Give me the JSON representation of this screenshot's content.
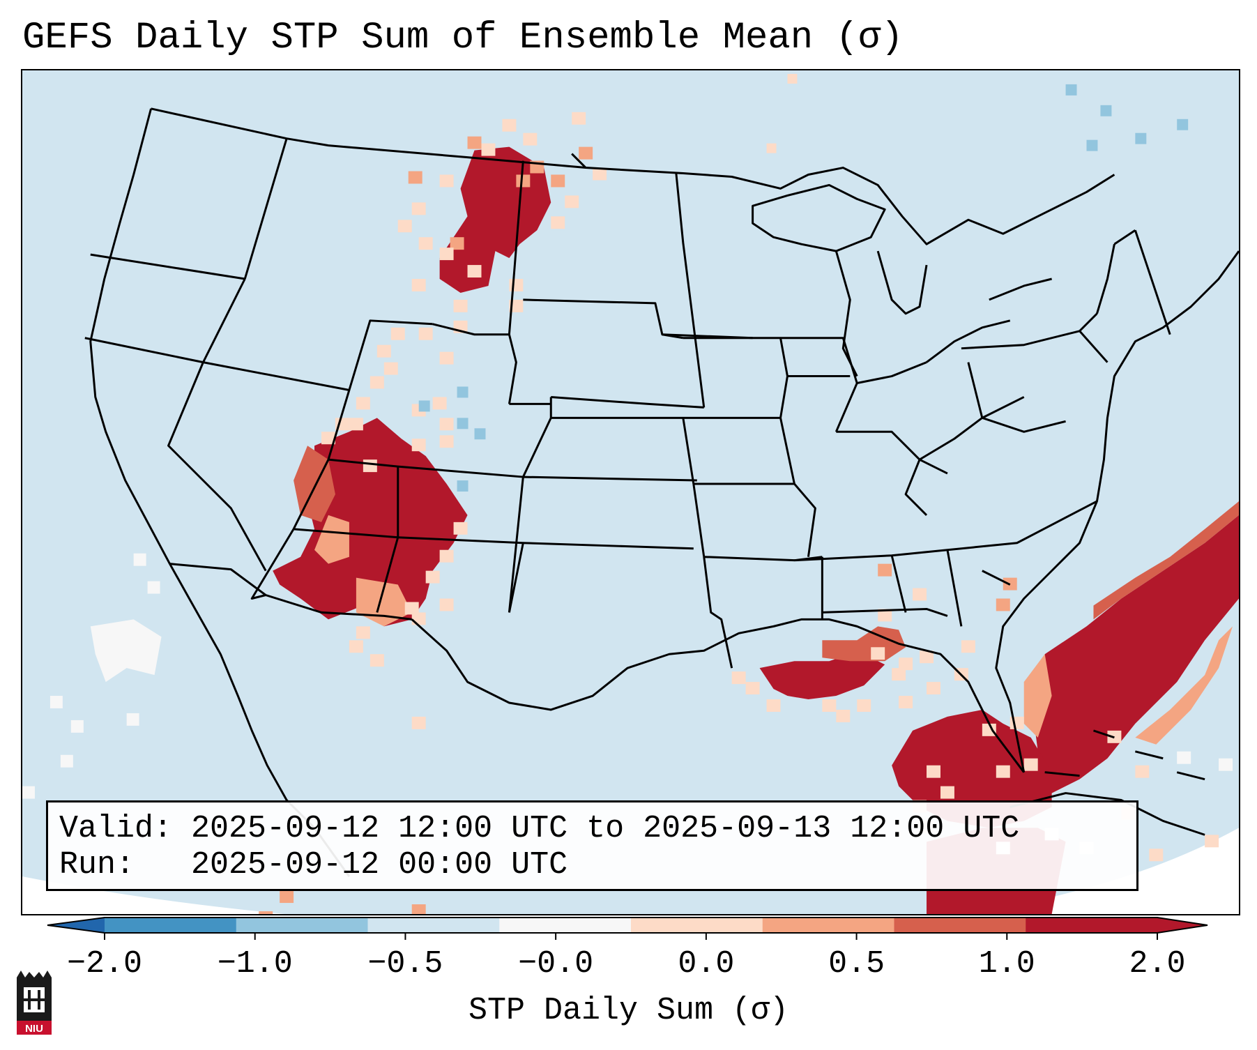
{
  "title": "GEFS Daily STP Sum of Ensemble Mean (σ)",
  "info": {
    "valid_label": "Valid:",
    "valid_value": "2025-09-12 12:00 UTC to 2025-09-13 12:00 UTC",
    "run_label": "Run:",
    "run_value": "2025-09-12 00:00 UTC"
  },
  "colorbar": {
    "label": "STP Daily Sum (σ)",
    "ticks": [
      "−2.0",
      "−1.0",
      "−0.5",
      "−0.0",
      "0.0",
      "0.5",
      "1.0",
      "2.0"
    ],
    "colors": [
      "#4393c3",
      "#92c5de",
      "#d1e5f0",
      "#f7f7f7",
      "#fddbc7",
      "#f4a582",
      "#d6604d",
      "#b2182b"
    ],
    "extend_low_color": "#2166ac",
    "extend_high_color": "#b2182b"
  },
  "map": {
    "background_color": "#d1e5f0",
    "outline_color": "#000000",
    "regions": [
      "Northern Plains (Montana / Dakotas)",
      "Four Corners (Utah / Arizona / Colorado / New Mexico)",
      "Gulf Coast (Louisiana)",
      "Florida / Western Atlantic"
    ]
  },
  "logo": {
    "text": "NIU"
  }
}
